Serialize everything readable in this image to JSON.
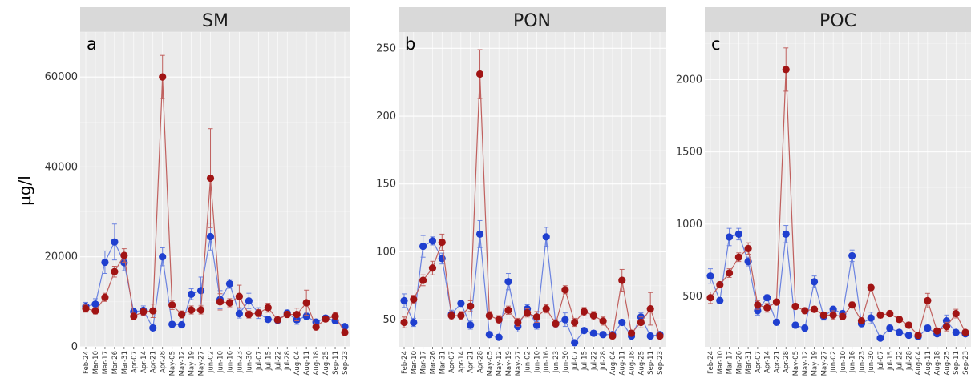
{
  "y_axis_label": "µg/l",
  "colors": {
    "series_a": "#1f3fcf",
    "series_b": "#a11414",
    "line_a": "#6a82e0",
    "line_b": "#c0605e",
    "panel_bg": "#ebebeb",
    "strip_bg": "#d9d9d9"
  },
  "chart_data": [
    {
      "type": "line",
      "title": "SM",
      "panel_letter": "a",
      "ylim": [
        0,
        70000
      ],
      "yticks": [
        0,
        20000,
        40000,
        60000
      ],
      "grid": true,
      "categories": [
        "Feb-24",
        "Mar-10",
        "Mar-17",
        "Mar-26",
        "Mar-31",
        "Apr-07",
        "Apr-14",
        "Apr-21",
        "Apr-28",
        "May-05",
        "May-12",
        "May-19",
        "May-27",
        "Jun-02",
        "Jun-10",
        "Jun-16",
        "Jun-23",
        "Jun-30",
        "Jul-07",
        "Jul-15",
        "Jul-22",
        "Jul-28",
        "Aug-04",
        "Aug-11",
        "Aug-18",
        "Aug-25",
        "Sep-11",
        "Sep-23"
      ],
      "series": [
        {
          "values": [
            9000,
            9500,
            18800,
            23300,
            18700,
            7800,
            8100,
            4200,
            20000,
            5000,
            4900,
            11700,
            12500,
            24500,
            10500,
            14000,
            7400,
            10200,
            7500,
            6100,
            5900,
            7500,
            6000,
            6800,
            5500,
            6400,
            5800,
            4500
          ],
          "errors": [
            900,
            1200,
            2500,
            4000,
            1800,
            700,
            1000,
            900,
            2000,
            600,
            600,
            1200,
            3000,
            3000,
            2000,
            1000,
            1000,
            1700,
            1200,
            600,
            600,
            700,
            1000,
            700,
            600,
            600,
            700,
            500
          ]
        },
        {
          "values": [
            8500,
            8000,
            11000,
            16700,
            20300,
            6800,
            7800,
            8000,
            60000,
            9300,
            7200,
            8200,
            8200,
            37500,
            10000,
            9800,
            11200,
            7200,
            7500,
            8700,
            6000,
            7200,
            7200,
            9800,
            4400,
            6200,
            6800,
            3200
          ],
          "errors": [
            800,
            700,
            900,
            1200,
            1500,
            700,
            800,
            1500,
            4800,
            1000,
            800,
            900,
            900,
            11000,
            1800,
            900,
            2500,
            800,
            800,
            1000,
            600,
            700,
            1400,
            2800,
            600,
            600,
            800,
            500
          ]
        }
      ]
    },
    {
      "type": "line",
      "title": "PON",
      "panel_letter": "b",
      "ylim": [
        30,
        262
      ],
      "yticks": [
        50,
        100,
        150,
        200,
        250
      ],
      "grid": true,
      "categories": [
        "Feb-24",
        "Mar-10",
        "Mar-17",
        "Mar-26",
        "Mar-31",
        "Apr-07",
        "Apr-14",
        "Apr-21",
        "Apr-28",
        "May-05",
        "May-12",
        "May-19",
        "May-27",
        "Jun-02",
        "Jun-10",
        "Jun-16",
        "Jun-23",
        "Jun-30",
        "Jul-07",
        "Jul-15",
        "Jul-22",
        "Jul-28",
        "Aug-04",
        "Aug-11",
        "Aug-18",
        "Aug-25",
        "Sep-11",
        "Sep-23"
      ],
      "series": [
        {
          "values": [
            64,
            48,
            104,
            108,
            95,
            54,
            62,
            46,
            113,
            39,
            37,
            78,
            45,
            58,
            46,
            111,
            47,
            50,
            33,
            42,
            40,
            39,
            39,
            48,
            38,
            52,
            38,
            39
          ],
          "errors": [
            5,
            3,
            8,
            3,
            4,
            3,
            2,
            3,
            10,
            2,
            2,
            6,
            4,
            3,
            3,
            7,
            3,
            5,
            2,
            2,
            2,
            2,
            2,
            2,
            2,
            3,
            2,
            2
          ]
        },
        {
          "values": [
            48,
            65,
            79,
            88,
            107,
            53,
            53,
            60,
            231,
            53,
            50,
            57,
            48,
            55,
            52,
            58,
            47,
            72,
            48,
            56,
            53,
            49,
            38,
            79,
            40,
            48,
            58,
            38
          ],
          "errors": [
            4,
            3,
            4,
            5,
            6,
            3,
            3,
            4,
            18,
            3,
            3,
            3,
            3,
            3,
            4,
            3,
            3,
            3,
            3,
            3,
            3,
            3,
            2,
            8,
            2,
            4,
            12,
            2
          ]
        }
      ]
    },
    {
      "type": "line",
      "title": "POC",
      "panel_letter": "c",
      "ylim": [
        150,
        2330
      ],
      "yticks": [
        500,
        1000,
        1500,
        2000
      ],
      "grid": true,
      "categories": [
        "Feb-24",
        "Mar-10",
        "Mar-17",
        "Mar-26",
        "Mar-31",
        "Apr-07",
        "Apr-14",
        "Apr-21",
        "Apr-28",
        "May-05",
        "May-12",
        "May-19",
        "May-27",
        "Jun-02",
        "Jun-10",
        "Jun-16",
        "Jun-23",
        "Jun-30",
        "Jul-07",
        "Jul-15",
        "Jul-22",
        "Jul-28",
        "Aug-04",
        "Aug-11",
        "Aug-18",
        "Aug-25",
        "Sep-11",
        "Sep-23"
      ],
      "series": [
        {
          "values": [
            640,
            470,
            910,
            930,
            740,
            400,
            490,
            320,
            930,
            300,
            280,
            600,
            360,
            410,
            380,
            780,
            310,
            350,
            210,
            280,
            250,
            230,
            220,
            280,
            240,
            330,
            250,
            240
          ],
          "errors": [
            50,
            20,
            60,
            40,
            30,
            30,
            20,
            20,
            60,
            20,
            20,
            40,
            25,
            20,
            20,
            40,
            20,
            40,
            10,
            20,
            10,
            10,
            10,
            20,
            10,
            40,
            10,
            10
          ]
        },
        {
          "values": [
            490,
            580,
            660,
            770,
            830,
            440,
            420,
            460,
            2070,
            430,
            400,
            410,
            370,
            370,
            360,
            440,
            330,
            560,
            370,
            380,
            340,
            300,
            230,
            470,
            260,
            290,
            380,
            250
          ],
          "errors": [
            40,
            20,
            30,
            30,
            40,
            30,
            30,
            20,
            150,
            20,
            20,
            20,
            20,
            30,
            20,
            20,
            20,
            20,
            20,
            20,
            20,
            20,
            10,
            50,
            10,
            30,
            30,
            10
          ]
        }
      ]
    }
  ]
}
